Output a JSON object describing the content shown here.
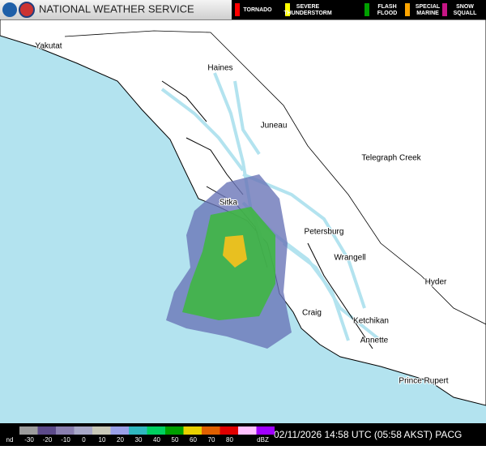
{
  "header": {
    "agency": "NATIONAL WEATHER SERVICE",
    "warnings": [
      {
        "label": "TORNADO",
        "color": "#ff0000"
      },
      {
        "label": "SEVERE THUNDERSTORM",
        "color": "#ffff00"
      },
      {
        "label": "FLASH FLOOD",
        "color": "#00a000"
      },
      {
        "label": "SPECIAL MARINE",
        "color": "#ffa500"
      },
      {
        "label": "SNOW SQUALL",
        "color": "#c71585"
      }
    ]
  },
  "map": {
    "places": [
      "Yakutat",
      "Haines",
      "Juneau",
      "Telegraph Creek",
      "Sitka",
      "Petersburg",
      "Wrangell",
      "Hyder",
      "Craig",
      "Ketchikan",
      "Annette",
      "Prince Rupert"
    ]
  },
  "footer": {
    "scale_labels": [
      "nd",
      -30,
      -20,
      -10,
      0,
      10,
      20,
      30,
      40,
      50,
      60,
      70,
      80,
      "dBZ"
    ],
    "timestamp": "02/11/2026 14:58 UTC (05:58 AKST) PACG"
  }
}
